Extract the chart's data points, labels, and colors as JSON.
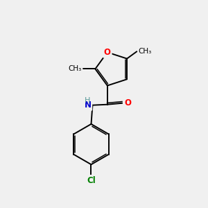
{
  "bg_color": "#f0f0f0",
  "bond_color": "#000000",
  "atom_colors": {
    "O": "#ff0000",
    "N": "#0000cc",
    "Cl": "#008000",
    "C": "#000000",
    "H": "#5a9a9a"
  },
  "font_size_atom": 8.5,
  "font_size_methyl": 7.5,
  "lw": 1.4,
  "lw2": 1.1
}
